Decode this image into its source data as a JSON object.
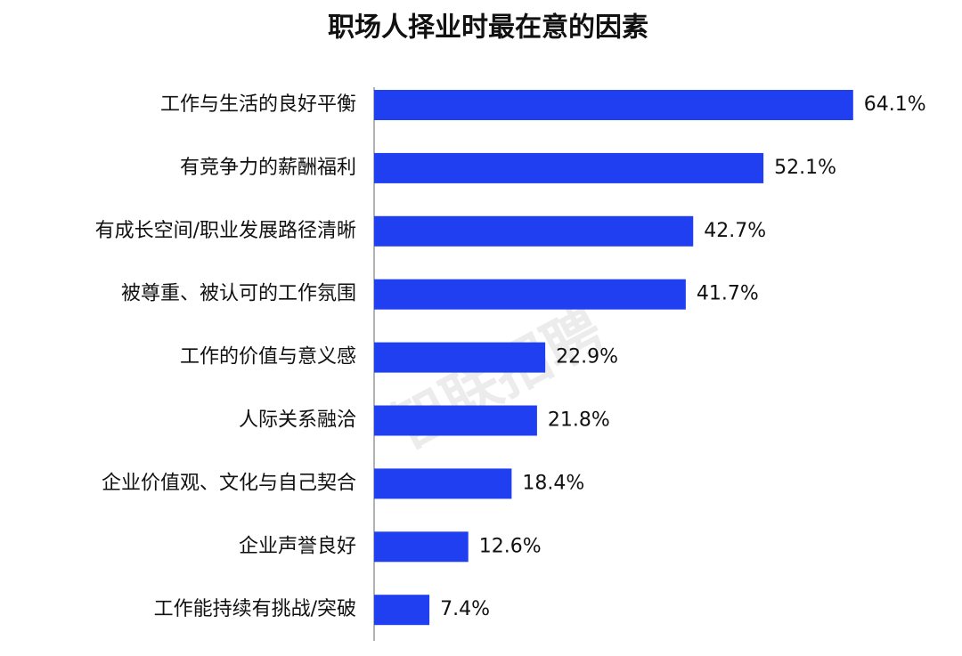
{
  "chart_data": {
    "type": "hbar",
    "title": "职场人择业时最在意的因素",
    "categories": [
      "工作与生活的良好平衡",
      "有竞争力的薪酬福利",
      "有成长空间/职业发展路径清晰",
      "被尊重、被认可的工作氛围",
      "工作的价值与意义感",
      "人际关系融洽",
      "企业价值观、文化与自己契合",
      "企业声誉良好",
      "工作能持续有挑战/突破"
    ],
    "values": [
      64.1,
      52.1,
      42.7,
      41.7,
      22.9,
      21.8,
      18.4,
      12.6,
      7.4
    ],
    "value_labels": [
      "64.1%",
      "52.1%",
      "42.7%",
      "41.7%",
      "22.9%",
      "21.8%",
      "18.4%",
      "12.6%",
      "7.4%"
    ],
    "color": "#1f3ff0",
    "watermark": "智联招聘"
  }
}
